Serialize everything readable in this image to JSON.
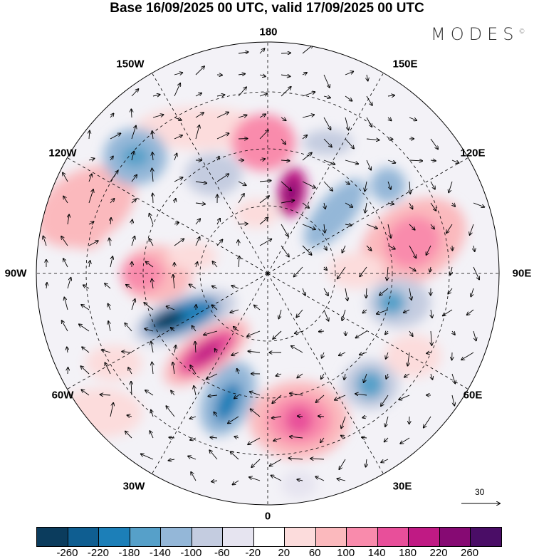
{
  "title": "Base 16/09/2025 00 UTC, valid 17/09/2025 00 UTC",
  "logo": "MODES",
  "logo_mark": "©",
  "longitude_labels": {
    "top": "180",
    "bottom": "0",
    "w150": "150W",
    "e150": "150E",
    "w120": "120W",
    "e120": "120E",
    "w90": "90W",
    "e90": "90E",
    "w60": "60W",
    "e60": "60E",
    "w30": "30W",
    "e30": "30E"
  },
  "vector_reference": "30",
  "colorbar": {
    "colors": [
      "#0b3c5d",
      "#0f5e91",
      "#1c7fb8",
      "#56a0c9",
      "#94b7d8",
      "#c4cce0",
      "#e6e4f0",
      "#ffffff",
      "#fcdcdc",
      "#fbb9bd",
      "#f98bac",
      "#e84f9a",
      "#c01a84",
      "#860a73",
      "#4a0d66"
    ],
    "labels": [
      "-260",
      "-220",
      "-180",
      "-140",
      "-100",
      "-60",
      "-20",
      "20",
      "60",
      "100",
      "140",
      "180",
      "220",
      "260"
    ]
  }
}
